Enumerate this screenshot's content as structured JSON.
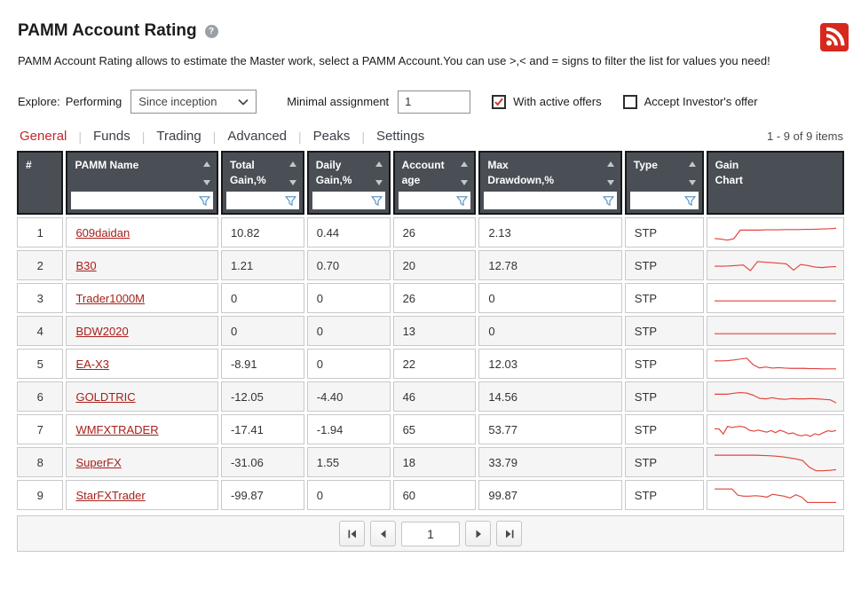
{
  "header": {
    "title": "PAMM Account Rating",
    "help_icon": "question-mark",
    "rss_icon": "rss"
  },
  "description": "PAMM Account Rating allows to estimate the Master work, select a PAMM Account.You can use >,< and = signs to filter the list for values you need!",
  "controls": {
    "explore_label": "Explore:",
    "performing_label": "Performing",
    "period_value": "Since inception",
    "minimal_assignment_label": "Minimal assignment",
    "minimal_assignment_value": "1",
    "checkboxes": [
      {
        "label": "With active offers",
        "checked": true
      },
      {
        "label": "Accept Investor's offer",
        "checked": false
      }
    ]
  },
  "tabs": [
    {
      "label": "General",
      "active": true
    },
    {
      "label": "Funds",
      "active": false
    },
    {
      "label": "Trading",
      "active": false
    },
    {
      "label": "Advanced",
      "active": false
    },
    {
      "label": "Peaks",
      "active": false
    },
    {
      "label": "Settings",
      "active": false
    }
  ],
  "items_count": "1 - 9 of 9 items",
  "table": {
    "columns": [
      {
        "label": "#",
        "sortable": false,
        "filterable": false
      },
      {
        "label": "PAMM Name",
        "sortable": true,
        "filterable": true
      },
      {
        "label": "Total\nGain,%",
        "sortable": true,
        "filterable": true
      },
      {
        "label": "Daily\nGain,%",
        "sortable": true,
        "filterable": true
      },
      {
        "label": "Account\nage",
        "sortable": true,
        "filterable": true
      },
      {
        "label": "Max\nDrawdown,%",
        "sortable": true,
        "filterable": true
      },
      {
        "label": "Type",
        "sortable": true,
        "filterable": true
      },
      {
        "label": "Gain\nChart",
        "sortable": false,
        "filterable": false
      }
    ],
    "rows": [
      {
        "index": "1",
        "name": "609daidan",
        "total_gain": "10.82",
        "daily_gain": "0.44",
        "account_age": "26",
        "max_drawdown": "2.13",
        "type": "STP",
        "sparkline": [
          24,
          21,
          17,
          23,
          60,
          60,
          60,
          60,
          61,
          61,
          61,
          62,
          62,
          62,
          63,
          63,
          64,
          65,
          66,
          68
        ]
      },
      {
        "index": "2",
        "name": "B30",
        "total_gain": "1.21",
        "daily_gain": "0.70",
        "account_age": "20",
        "max_drawdown": "12.78",
        "type": "STP",
        "sparkline": [
          46,
          46,
          47,
          49,
          51,
          27,
          66,
          63,
          61,
          59,
          56,
          29,
          53,
          49,
          42,
          40,
          43,
          44
        ]
      },
      {
        "index": "3",
        "name": "Trader1000M",
        "total_gain": "0",
        "daily_gain": "0",
        "account_age": "26",
        "max_drawdown": "0",
        "type": "STP",
        "sparkline": [
          38,
          38,
          38,
          38,
          38,
          38,
          38,
          38,
          38,
          38,
          38,
          38,
          38,
          38,
          38,
          38,
          38,
          38
        ]
      },
      {
        "index": "4",
        "name": "BDW2020",
        "total_gain": "0",
        "daily_gain": "0",
        "account_age": "13",
        "max_drawdown": "0",
        "type": "STP",
        "sparkline": [
          38,
          38,
          38,
          38,
          38,
          38,
          38,
          38,
          38,
          38,
          38,
          38,
          38,
          38,
          38,
          38,
          38,
          38
        ]
      },
      {
        "index": "5",
        "name": "EA-X3",
        "total_gain": "-8.91",
        "daily_gain": "0",
        "account_age": "22",
        "max_drawdown": "12.03",
        "type": "STP",
        "sparkline": [
          62,
          62,
          63,
          66,
          70,
          74,
          46,
          32,
          36,
          31,
          33,
          31,
          30,
          30,
          30,
          29,
          29,
          28,
          28,
          28
        ]
      },
      {
        "index": "6",
        "name": "GOLDTRIC",
        "total_gain": "-12.05",
        "daily_gain": "-4.40",
        "account_age": "46",
        "max_drawdown": "14.56",
        "type": "STP",
        "sparkline": [
          60,
          60,
          60,
          64,
          67,
          65,
          56,
          42,
          40,
          45,
          40,
          38,
          41,
          40,
          40,
          41,
          40,
          38,
          36,
          22
        ]
      },
      {
        "index": "7",
        "name": "WMFXTRADER",
        "total_gain": "-17.41",
        "daily_gain": "-1.94",
        "account_age": "65",
        "max_drawdown": "53.77",
        "type": "STP",
        "sparkline": [
          52,
          52,
          30,
          63,
          58,
          61,
          63,
          59,
          46,
          42,
          47,
          42,
          38,
          45,
          36,
          46,
          40,
          31,
          35,
          26,
          22,
          27,
          20,
          31,
          26,
          36,
          44,
          41,
          46
        ]
      },
      {
        "index": "8",
        "name": "SuperFX",
        "total_gain": "-31.06",
        "daily_gain": "1.55",
        "account_age": "18",
        "max_drawdown": "33.79",
        "type": "STP",
        "sparkline": [
          80,
          80,
          80,
          80,
          80,
          80,
          80,
          79,
          78,
          76,
          73,
          69,
          64,
          57,
          28,
          13,
          13,
          15,
          18
        ]
      },
      {
        "index": "9",
        "name": "StarFXTrader",
        "total_gain": "-99.87",
        "daily_gain": "0",
        "account_age": "60",
        "max_drawdown": "99.87",
        "type": "STP",
        "sparkline": [
          76,
          76,
          76,
          76,
          49,
          45,
          45,
          47,
          45,
          41,
          53,
          49,
          45,
          37,
          51,
          41,
          18,
          18,
          18,
          18,
          18,
          18
        ]
      }
    ]
  },
  "chart_data": {
    "type": "line",
    "note": "red gain sparklines per PAMM account, values are relative gain-curve heights 0-100",
    "series_source": "table.rows[].sparkline"
  },
  "pagination": {
    "page_value": "1",
    "buttons": [
      "seek-first",
      "previous",
      "next",
      "seek-end"
    ]
  },
  "colors": {
    "accent_red": "#c0282d",
    "link_red": "#a6201c",
    "sparkline_red": "#e2423b",
    "header_bg": "#4a4f55",
    "funnel_blue": "#4d8fc4",
    "check_red": "#cf3732",
    "rss_red": "#d7281e"
  }
}
